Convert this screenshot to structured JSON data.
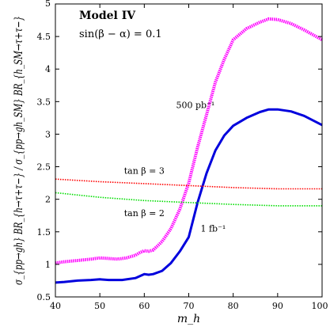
{
  "chart_data": {
    "type": "line",
    "title": "Model IV",
    "subtitle": "sin(β − α) = 0.1",
    "xlabel": "m_h",
    "ylabel": "σ_{pp→gh} BR_{h→τ+τ−} / σ_{pp→gh_SM} BR_{h_SM→τ+τ−}",
    "xlim": [
      40,
      100
    ],
    "ylim": [
      0.5,
      5
    ],
    "xticks": [
      40,
      50,
      60,
      70,
      80,
      90,
      100
    ],
    "yticks": [
      0.5,
      1,
      1.5,
      2,
      2.5,
      3,
      3.5,
      4,
      4.5,
      5
    ],
    "xtick_labels": [
      "40",
      "50",
      "60",
      "70",
      "80",
      "90",
      "100"
    ],
    "ytick_labels": [
      "0.5",
      "1",
      "1.5",
      "2",
      "2.5",
      "3",
      "3.5",
      "4",
      "4.5",
      "5"
    ],
    "grid": false,
    "legend": "none",
    "series": [
      {
        "name": "500 pb⁻¹",
        "color": "#ff00ff",
        "style": "thick-dotted",
        "x": [
          40,
          42,
          45,
          48,
          50,
          52,
          54,
          56,
          58,
          59,
          60,
          61,
          62,
          64,
          66,
          68,
          70,
          72,
          74,
          76,
          78,
          80,
          83,
          86,
          88,
          90,
          93,
          96,
          100
        ],
        "y": [
          1.02,
          1.04,
          1.06,
          1.08,
          1.1,
          1.09,
          1.08,
          1.1,
          1.14,
          1.18,
          1.21,
          1.2,
          1.22,
          1.35,
          1.55,
          1.85,
          2.25,
          2.8,
          3.3,
          3.8,
          4.15,
          4.45,
          4.62,
          4.72,
          4.77,
          4.76,
          4.7,
          4.6,
          4.45
        ]
      },
      {
        "name": "1 fb⁻¹",
        "color": "#0000dd",
        "style": "solid",
        "x": [
          40,
          42,
          45,
          48,
          50,
          52,
          55,
          58,
          59,
          60,
          61,
          62,
          64,
          66,
          68,
          70,
          72,
          74,
          76,
          78,
          80,
          83,
          86,
          88,
          90,
          93,
          96,
          100
        ],
        "y": [
          0.72,
          0.73,
          0.75,
          0.76,
          0.77,
          0.76,
          0.76,
          0.79,
          0.82,
          0.85,
          0.84,
          0.85,
          0.9,
          1.02,
          1.2,
          1.42,
          1.95,
          2.4,
          2.75,
          2.98,
          3.13,
          3.25,
          3.34,
          3.38,
          3.38,
          3.35,
          3.28,
          3.14
        ]
      },
      {
        "name": "tan β = 3",
        "color": "#ff0000",
        "style": "thin-crossed",
        "x": [
          40,
          50,
          60,
          70,
          80,
          90,
          100
        ],
        "y": [
          2.31,
          2.27,
          2.24,
          2.21,
          2.18,
          2.16,
          2.16
        ]
      },
      {
        "name": "tan β = 2",
        "color": "#00dd00",
        "style": "thin-crossed",
        "x": [
          40,
          50,
          60,
          70,
          80,
          90,
          100
        ],
        "y": [
          2.1,
          2.03,
          1.98,
          1.95,
          1.92,
          1.9,
          1.9
        ]
      }
    ],
    "annotations": [
      {
        "text": "500 pb⁻¹",
        "x": 71.5,
        "y": 3.45
      },
      {
        "text": "1 fb⁻¹",
        "x": 75.5,
        "y": 1.55
      },
      {
        "text": "tan β = 3",
        "x": 60,
        "y": 2.44
      },
      {
        "text": "tan β = 2",
        "x": 60,
        "y": 1.79
      }
    ]
  }
}
